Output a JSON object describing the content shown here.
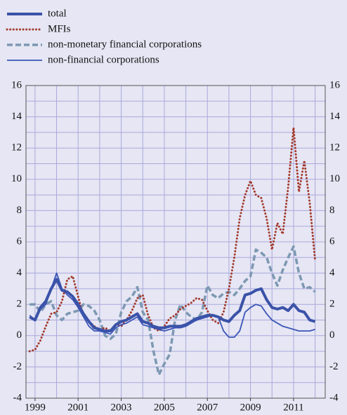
{
  "chart_data": {
    "type": "line",
    "x": [
      1998.75,
      1999,
      1999.25,
      1999.5,
      1999.75,
      2000,
      2000.25,
      2000.5,
      2000.75,
      2001,
      2001.25,
      2001.5,
      2001.75,
      2002,
      2002.25,
      2002.5,
      2002.75,
      2003,
      2003.25,
      2003.5,
      2003.75,
      2004,
      2004.25,
      2004.5,
      2004.75,
      2005,
      2005.25,
      2005.5,
      2005.75,
      2006,
      2006.25,
      2006.5,
      2006.75,
      2007,
      2007.25,
      2007.5,
      2007.75,
      2008,
      2008.25,
      2008.5,
      2008.75,
      2009,
      2009.25,
      2009.5,
      2009.75,
      2010,
      2010.25,
      2010.5,
      2010.75,
      2011,
      2011.25,
      2011.5,
      2011.75,
      2012
    ],
    "series": [
      {
        "name": "total",
        "color": "#3a52a8",
        "style": "thick",
        "values": [
          1.2,
          1.0,
          1.8,
          2.2,
          3.0,
          3.6,
          2.9,
          2.8,
          2.5,
          2.0,
          1.4,
          0.9,
          0.5,
          0.4,
          0.3,
          0.3,
          0.7,
          0.9,
          1.0,
          1.2,
          1.4,
          0.9,
          0.8,
          0.6,
          0.5,
          0.5,
          0.6,
          0.6,
          0.6,
          0.7,
          0.9,
          1.1,
          1.2,
          1.3,
          1.3,
          1.2,
          1.0,
          0.9,
          1.3,
          1.6,
          2.6,
          2.7,
          2.9,
          3.0,
          2.3,
          1.8,
          1.7,
          1.8,
          1.6,
          2.0,
          1.6,
          1.5,
          1.0,
          0.9
        ]
      },
      {
        "name": "MFIs",
        "color": "#a33a2c",
        "style": "dotted",
        "values": [
          -1.0,
          -0.9,
          -0.3,
          0.6,
          1.4,
          1.5,
          2.2,
          3.6,
          3.8,
          2.5,
          1.2,
          0.9,
          0.6,
          0.4,
          0.5,
          0.3,
          0.7,
          0.6,
          1.0,
          1.6,
          2.4,
          2.6,
          1.3,
          0.5,
          0.3,
          0.6,
          1.1,
          1.3,
          1.7,
          1.9,
          2.1,
          2.4,
          2.3,
          1.6,
          1.0,
          0.8,
          1.5,
          3.0,
          5.0,
          7.5,
          9.0,
          9.9,
          9.0,
          8.8,
          7.5,
          5.5,
          7.2,
          6.5,
          9.5,
          13.3,
          9.2,
          11.2,
          8.5,
          4.8
        ]
      },
      {
        "name": "non-monetary financial corporations",
        "color": "#7d98b2",
        "style": "dashed",
        "values": [
          2.0,
          2.0,
          1.5,
          2.0,
          2.2,
          1.3,
          1.0,
          1.4,
          1.5,
          1.6,
          2.0,
          1.9,
          1.6,
          1.0,
          0.0,
          -0.2,
          0.1,
          1.5,
          2.2,
          2.5,
          3.1,
          1.5,
          1.0,
          -1.0,
          -2.5,
          -1.8,
          -1.2,
          1.0,
          2.0,
          1.5,
          1.2,
          1.0,
          1.5,
          3.2,
          2.6,
          2.4,
          2.7,
          2.8,
          2.6,
          3.0,
          3.5,
          3.8,
          5.5,
          5.3,
          5.0,
          4.0,
          3.2,
          4.2,
          5.0,
          5.7,
          4.0,
          3.0,
          3.1,
          2.8
        ]
      },
      {
        "name": "non-financial corporations",
        "color": "#3a55b8",
        "style": "thin",
        "values": [
          1.3,
          1.0,
          1.7,
          2.0,
          3.0,
          4.0,
          3.0,
          2.6,
          2.3,
          1.8,
          1.2,
          0.6,
          0.3,
          0.3,
          0.2,
          0.1,
          0.5,
          0.7,
          0.8,
          1.0,
          1.2,
          0.7,
          0.6,
          0.5,
          0.4,
          0.3,
          0.4,
          0.5,
          0.5,
          0.6,
          0.8,
          1.0,
          1.1,
          1.2,
          1.3,
          1.2,
          0.3,
          -0.1,
          -0.1,
          0.3,
          1.5,
          1.8,
          2.0,
          1.9,
          1.4,
          1.0,
          0.8,
          0.6,
          0.5,
          0.4,
          0.3,
          0.3,
          0.3,
          0.4
        ]
      }
    ],
    "xlim": [
      1998.58,
      2012.47
    ],
    "xticks": [
      1999,
      2001,
      2003,
      2005,
      2007,
      2009,
      2011
    ],
    "xminor": [
      2000,
      2002,
      2004,
      2006,
      2008,
      2010,
      2012
    ],
    "ylim": [
      -4,
      16
    ],
    "yticks": [
      -4,
      -2,
      0,
      2,
      4,
      6,
      8,
      10,
      12,
      14,
      16
    ],
    "yminor": [
      -3,
      -1,
      1,
      3,
      5,
      7,
      9,
      11,
      13,
      15
    ],
    "grid": true,
    "legend": "top-left"
  }
}
